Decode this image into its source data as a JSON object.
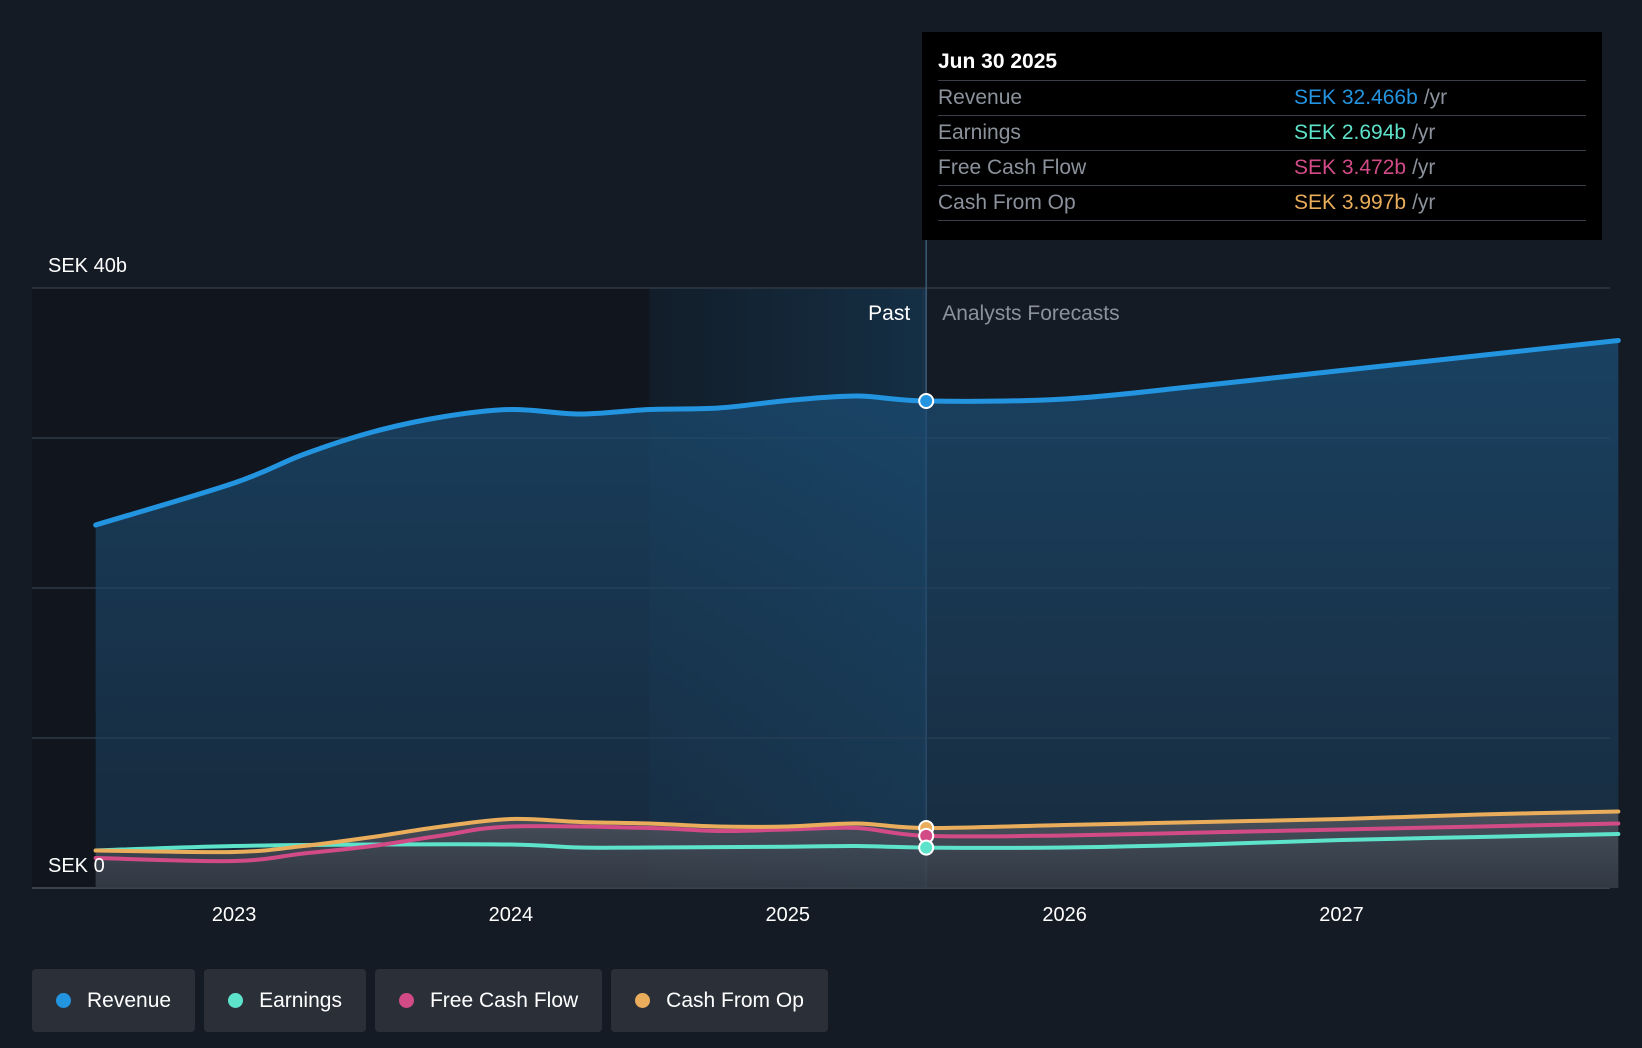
{
  "chart_data": {
    "type": "line",
    "title": "",
    "y_unit_label_top": "SEK 40b",
    "y_unit_label_bottom": "SEK 0",
    "ylim": [
      0,
      40
    ],
    "xlim": [
      2022.5,
      2028.0
    ],
    "x_ticks": [
      {
        "value": 2023,
        "label": "2023"
      },
      {
        "value": 2024,
        "label": "2024"
      },
      {
        "value": 2025,
        "label": "2025"
      },
      {
        "value": 2026,
        "label": "2026"
      },
      {
        "value": 2027,
        "label": "2027"
      }
    ],
    "gridlines": [
      0,
      10,
      20,
      30,
      40
    ],
    "past_label": "Past",
    "forecast_label": "Analysts Forecasts",
    "divider_x": 2025.5,
    "highlight_start_x": 2024.5,
    "series": [
      {
        "key": "revenue",
        "name": "Revenue",
        "color": "#2394df",
        "points": [
          [
            2022.5,
            24.2
          ],
          [
            2023.0,
            27.0
          ],
          [
            2023.25,
            28.9
          ],
          [
            2023.5,
            30.4
          ],
          [
            2023.75,
            31.4
          ],
          [
            2024.0,
            31.9
          ],
          [
            2024.25,
            31.6
          ],
          [
            2024.5,
            31.9
          ],
          [
            2024.75,
            32.0
          ],
          [
            2025.0,
            32.5
          ],
          [
            2025.25,
            32.8
          ],
          [
            2025.5,
            32.466
          ],
          [
            2026.0,
            32.6
          ],
          [
            2026.5,
            33.5
          ],
          [
            2027.0,
            34.5
          ],
          [
            2027.5,
            35.5
          ],
          [
            2028.0,
            36.5
          ]
        ]
      },
      {
        "key": "earnings",
        "name": "Earnings",
        "color": "#5ee3cb",
        "points": [
          [
            2022.5,
            2.5
          ],
          [
            2023.0,
            2.8
          ],
          [
            2023.5,
            2.9
          ],
          [
            2024.0,
            2.9
          ],
          [
            2024.25,
            2.7
          ],
          [
            2024.5,
            2.7
          ],
          [
            2025.0,
            2.75
          ],
          [
            2025.25,
            2.8
          ],
          [
            2025.5,
            2.694
          ],
          [
            2026.0,
            2.7
          ],
          [
            2026.5,
            2.9
          ],
          [
            2027.0,
            3.2
          ],
          [
            2027.5,
            3.4
          ],
          [
            2028.0,
            3.6
          ]
        ]
      },
      {
        "key": "fcf",
        "name": "Free Cash Flow",
        "color": "#d24b87",
        "points": [
          [
            2022.5,
            2.0
          ],
          [
            2023.0,
            1.8
          ],
          [
            2023.25,
            2.3
          ],
          [
            2023.5,
            2.8
          ],
          [
            2023.75,
            3.5
          ],
          [
            2024.0,
            4.1
          ],
          [
            2024.5,
            4.0
          ],
          [
            2024.75,
            3.8
          ],
          [
            2025.0,
            3.9
          ],
          [
            2025.25,
            4.0
          ],
          [
            2025.5,
            3.472
          ],
          [
            2026.0,
            3.5
          ],
          [
            2026.5,
            3.7
          ],
          [
            2027.0,
            3.9
          ],
          [
            2027.5,
            4.1
          ],
          [
            2028.0,
            4.3
          ]
        ]
      },
      {
        "key": "cfo",
        "name": "Cash From Op",
        "color": "#e9ad5b",
        "points": [
          [
            2022.5,
            2.5
          ],
          [
            2023.0,
            2.4
          ],
          [
            2023.25,
            2.8
          ],
          [
            2023.5,
            3.4
          ],
          [
            2023.75,
            4.1
          ],
          [
            2024.0,
            4.6
          ],
          [
            2024.25,
            4.4
          ],
          [
            2024.5,
            4.3
          ],
          [
            2024.75,
            4.1
          ],
          [
            2025.0,
            4.1
          ],
          [
            2025.25,
            4.3
          ],
          [
            2025.5,
            3.997
          ],
          [
            2026.0,
            4.2
          ],
          [
            2026.5,
            4.4
          ],
          [
            2027.0,
            4.6
          ],
          [
            2027.5,
            4.9
          ],
          [
            2028.0,
            5.1
          ]
        ]
      }
    ]
  },
  "tooltip": {
    "date": "Jun 30 2025",
    "unit": "/yr",
    "rows": [
      {
        "label": "Revenue",
        "value": "SEK 32.466b",
        "color": "#2394df"
      },
      {
        "label": "Earnings",
        "value": "SEK 2.694b",
        "color": "#5ee3cb"
      },
      {
        "label": "Free Cash Flow",
        "value": "SEK 3.472b",
        "color": "#d24b87"
      },
      {
        "label": "Cash From Op",
        "value": "SEK 3.997b",
        "color": "#e9ad5b"
      }
    ]
  },
  "legend": [
    {
      "label": "Revenue",
      "color": "#2394df"
    },
    {
      "label": "Earnings",
      "color": "#5ee3cb"
    },
    {
      "label": "Free Cash Flow",
      "color": "#d24b87"
    },
    {
      "label": "Cash From Op",
      "color": "#e9ad5b"
    }
  ]
}
